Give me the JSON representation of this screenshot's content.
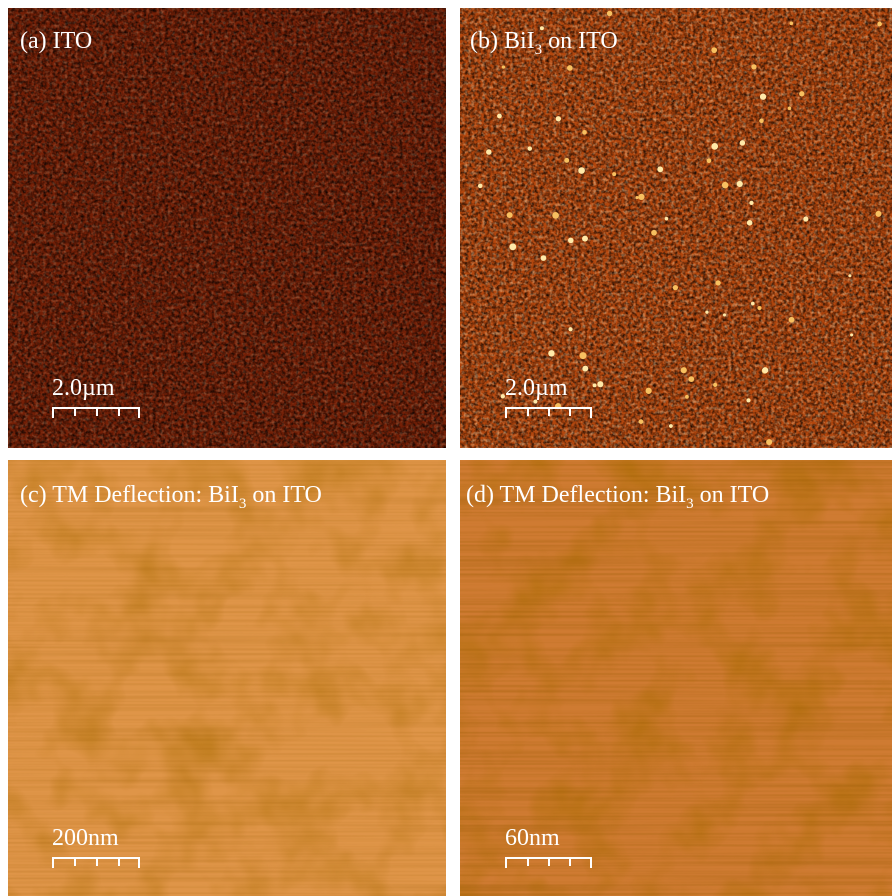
{
  "panels": [
    {
      "label": {
        "text": "(a) ITO"
      },
      "scale_bar": "2.0µm"
    },
    {
      "label": {
        "text": "(b) BiI",
        "sub": "3",
        "after": "on ITO"
      },
      "scale_bar": "2.0µm"
    },
    {
      "label": {
        "text": "(c) TM Deflection: BiI",
        "sub": "3",
        "after": "on ITO"
      },
      "scale_bar": "200nm"
    },
    {
      "label": {
        "text": "(d) TM Deflection: BiI",
        "sub": "3",
        "after": "on ITO"
      },
      "scale_bar": "60nm"
    }
  ]
}
